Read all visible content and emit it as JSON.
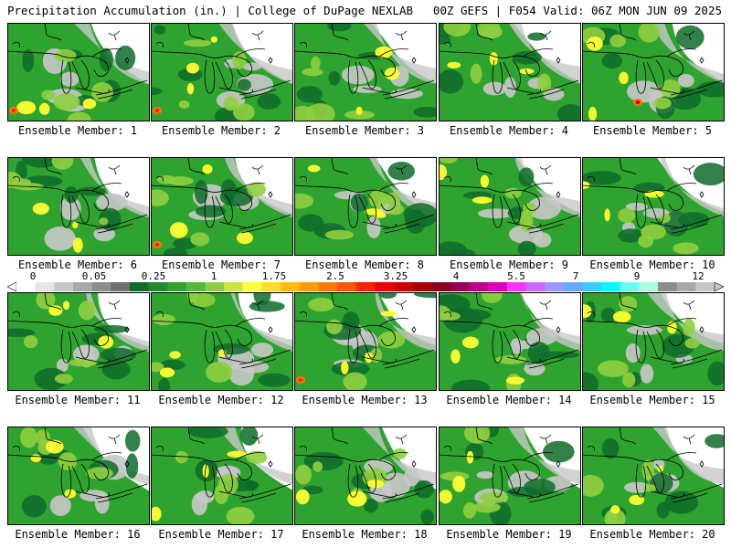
{
  "header": {
    "left": "Precipitation Accumulation (in.) | College of DuPage NEXLAB",
    "right": "00Z GEFS | F054 Valid: 06Z MON JUN 09 2025"
  },
  "panels": [
    {
      "label": "Ensemble Member: 1",
      "member": 1
    },
    {
      "label": "Ensemble Member: 2",
      "member": 2
    },
    {
      "label": "Ensemble Member: 3",
      "member": 3
    },
    {
      "label": "Ensemble Member: 4",
      "member": 4
    },
    {
      "label": "Ensemble Member: 5",
      "member": 5
    },
    {
      "label": "Ensemble Member: 6",
      "member": 6
    },
    {
      "label": "Ensemble Member: 7",
      "member": 7
    },
    {
      "label": "Ensemble Member: 8",
      "member": 8
    },
    {
      "label": "Ensemble Member: 9",
      "member": 9
    },
    {
      "label": "Ensemble Member: 10",
      "member": 10
    },
    {
      "label": "Ensemble Member: 11",
      "member": 11
    },
    {
      "label": "Ensemble Member: 12",
      "member": 12
    },
    {
      "label": "Ensemble Member: 13",
      "member": 13
    },
    {
      "label": "Ensemble Member: 14",
      "member": 14
    },
    {
      "label": "Ensemble Member: 15",
      "member": 15
    },
    {
      "label": "Ensemble Member: 16",
      "member": 16
    },
    {
      "label": "Ensemble Member: 17",
      "member": 17
    },
    {
      "label": "Ensemble Member: 18",
      "member": 18
    },
    {
      "label": "Ensemble Member: 19",
      "member": 19
    },
    {
      "label": "Ensemble Member: 20",
      "member": 20
    }
  ],
  "colorbar": {
    "ticks": [
      "0",
      "0.05",
      "0.25",
      "1",
      "1.75",
      "2.5",
      "3.25",
      "4",
      "5.5",
      "7",
      "9",
      "12"
    ],
    "colors": [
      "#ffffff",
      "#e6e6e6",
      "#c8c8c8",
      "#a8a8a8",
      "#8c8c8c",
      "#6f6f6f",
      "#0f6b2a",
      "#1f8a2e",
      "#2fa32f",
      "#55b83a",
      "#8fcf3f",
      "#cfe33f",
      "#ffff33",
      "#ffdd22",
      "#ffbb00",
      "#ff9900",
      "#ff7700",
      "#ff5500",
      "#ff2200",
      "#ee0000",
      "#cc0000",
      "#aa0000",
      "#880022",
      "#990055",
      "#bb0088",
      "#dd00bb",
      "#ff33ff",
      "#cc66ff",
      "#9999ff",
      "#66aaff",
      "#33ccff",
      "#00ffff",
      "#66ffee",
      "#aaffdd",
      "#8c8c8c",
      "#a8a8a8",
      "#c8c8c8"
    ]
  }
}
